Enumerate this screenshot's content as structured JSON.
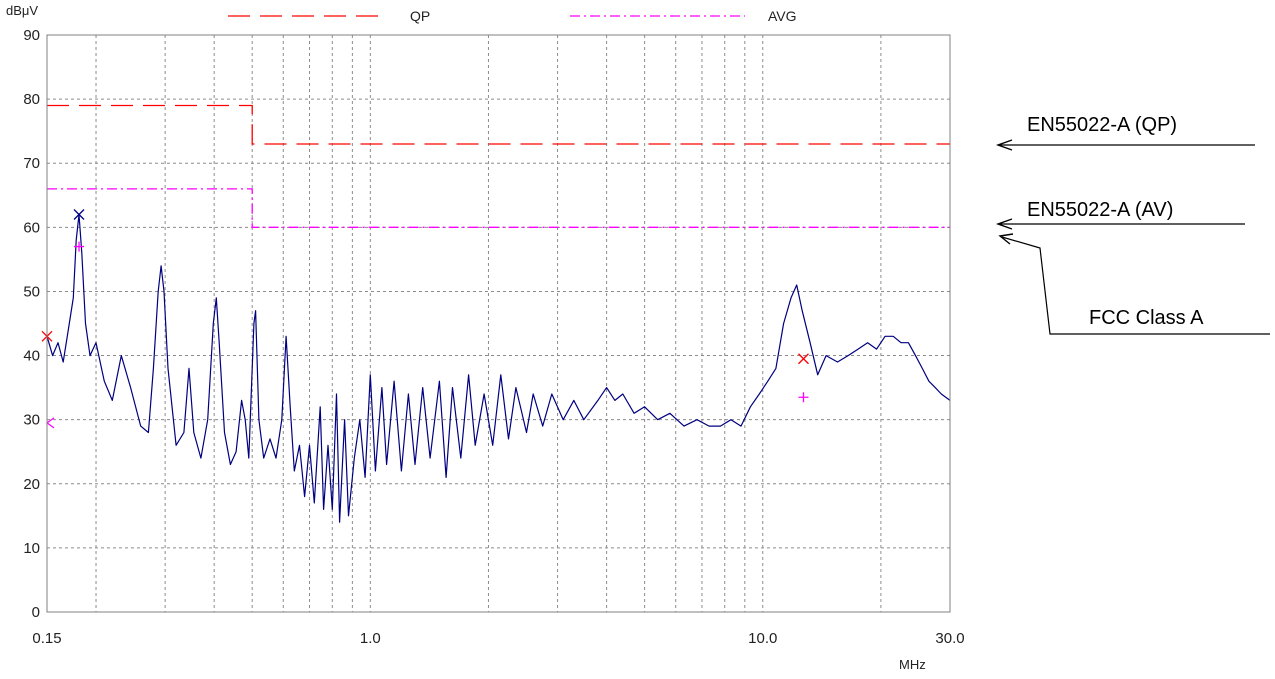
{
  "chart_data": {
    "type": "line",
    "ylabel": "dBμV",
    "xlabel": "MHz",
    "x_scale": "log",
    "xlim": [
      0.15,
      30.0
    ],
    "ylim": [
      0,
      90
    ],
    "y_ticks": [
      0,
      10,
      20,
      30,
      40,
      50,
      60,
      70,
      80,
      90
    ],
    "x_tick_labels": [
      {
        "value": 0.15,
        "label": "0.15"
      },
      {
        "value": 1.0,
        "label": "1.0"
      },
      {
        "value": 10.0,
        "label": "10.0"
      },
      {
        "value": 30.0,
        "label": "30.0"
      }
    ],
    "x_grid": [
      0.2,
      0.3,
      0.4,
      0.5,
      0.6,
      0.7,
      0.8,
      0.9,
      1,
      2,
      3,
      4,
      5,
      6,
      7,
      8,
      9,
      10,
      20
    ],
    "grid": true,
    "legend_position": "top",
    "legend": [
      {
        "name": "QP",
        "color": "#ff0000",
        "style": "dashed"
      },
      {
        "name": "AVG",
        "color": "#ff00ff",
        "style": "dash-dot"
      }
    ],
    "limit_lines": [
      {
        "name": "QP",
        "color": "#ff0000",
        "points": [
          [
            0.15,
            79
          ],
          [
            0.5,
            79
          ],
          [
            0.5,
            73
          ],
          [
            30.0,
            73
          ]
        ]
      },
      {
        "name": "AVG",
        "color": "#ff00ff",
        "points": [
          [
            0.15,
            66
          ],
          [
            0.5,
            66
          ],
          [
            0.5,
            60
          ],
          [
            30.0,
            60
          ]
        ]
      }
    ],
    "trace": {
      "color": "#000080",
      "points": [
        [
          0.15,
          43
        ],
        [
          0.155,
          40
        ],
        [
          0.16,
          42
        ],
        [
          0.165,
          39
        ],
        [
          0.17,
          44
        ],
        [
          0.175,
          49
        ],
        [
          0.178,
          58
        ],
        [
          0.181,
          62
        ],
        [
          0.184,
          56
        ],
        [
          0.188,
          45
        ],
        [
          0.193,
          40
        ],
        [
          0.2,
          42
        ],
        [
          0.21,
          36
        ],
        [
          0.22,
          33
        ],
        [
          0.232,
          40
        ],
        [
          0.245,
          35
        ],
        [
          0.26,
          29
        ],
        [
          0.272,
          28
        ],
        [
          0.28,
          38
        ],
        [
          0.288,
          50
        ],
        [
          0.293,
          54
        ],
        [
          0.298,
          50
        ],
        [
          0.305,
          38
        ],
        [
          0.32,
          26
        ],
        [
          0.335,
          28
        ],
        [
          0.345,
          38
        ],
        [
          0.355,
          28
        ],
        [
          0.37,
          24
        ],
        [
          0.385,
          30
        ],
        [
          0.398,
          45
        ],
        [
          0.405,
          49
        ],
        [
          0.412,
          42
        ],
        [
          0.425,
          28
        ],
        [
          0.44,
          23
        ],
        [
          0.455,
          25
        ],
        [
          0.47,
          33
        ],
        [
          0.48,
          30
        ],
        [
          0.49,
          24
        ],
        [
          0.505,
          45
        ],
        [
          0.51,
          47
        ],
        [
          0.52,
          30
        ],
        [
          0.535,
          24
        ],
        [
          0.555,
          27
        ],
        [
          0.575,
          24
        ],
        [
          0.595,
          30
        ],
        [
          0.61,
          43
        ],
        [
          0.625,
          32
        ],
        [
          0.64,
          22
        ],
        [
          0.66,
          26
        ],
        [
          0.68,
          18
        ],
        [
          0.7,
          26
        ],
        [
          0.72,
          17
        ],
        [
          0.745,
          32
        ],
        [
          0.76,
          16
        ],
        [
          0.78,
          26
        ],
        [
          0.8,
          16
        ],
        [
          0.82,
          34
        ],
        [
          0.835,
          14
        ],
        [
          0.86,
          30
        ],
        [
          0.88,
          15
        ],
        [
          0.91,
          24
        ],
        [
          0.94,
          30
        ],
        [
          0.97,
          21
        ],
        [
          1.0,
          37
        ],
        [
          1.03,
          22
        ],
        [
          1.07,
          35
        ],
        [
          1.1,
          23
        ],
        [
          1.15,
          36
        ],
        [
          1.2,
          22
        ],
        [
          1.25,
          34
        ],
        [
          1.3,
          23
        ],
        [
          1.36,
          35
        ],
        [
          1.42,
          24
        ],
        [
          1.5,
          36
        ],
        [
          1.56,
          21
        ],
        [
          1.62,
          35
        ],
        [
          1.7,
          24
        ],
        [
          1.78,
          37
        ],
        [
          1.85,
          26
        ],
        [
          1.95,
          34
        ],
        [
          2.05,
          26
        ],
        [
          2.15,
          37
        ],
        [
          2.25,
          27
        ],
        [
          2.35,
          35
        ],
        [
          2.5,
          28
        ],
        [
          2.6,
          34
        ],
        [
          2.75,
          29
        ],
        [
          2.9,
          34
        ],
        [
          3.1,
          30
        ],
        [
          3.3,
          33
        ],
        [
          3.5,
          30
        ],
        [
          3.8,
          33
        ],
        [
          4.0,
          35
        ],
        [
          4.2,
          33
        ],
        [
          4.4,
          34
        ],
        [
          4.7,
          31
        ],
        [
          5.0,
          32
        ],
        [
          5.4,
          30
        ],
        [
          5.8,
          31
        ],
        [
          6.3,
          29
        ],
        [
          6.8,
          30
        ],
        [
          7.3,
          29
        ],
        [
          7.8,
          29
        ],
        [
          8.3,
          30
        ],
        [
          8.8,
          29
        ],
        [
          9.3,
          32
        ],
        [
          9.8,
          34
        ],
        [
          10.3,
          36
        ],
        [
          10.8,
          38
        ],
        [
          11.3,
          45
        ],
        [
          11.8,
          49
        ],
        [
          12.2,
          51
        ],
        [
          12.6,
          47
        ],
        [
          13.2,
          42
        ],
        [
          13.8,
          37
        ],
        [
          14.5,
          40
        ],
        [
          15.5,
          39
        ],
        [
          16.5,
          40
        ],
        [
          17.5,
          41
        ],
        [
          18.5,
          42
        ],
        [
          19.5,
          41
        ],
        [
          20.5,
          43
        ],
        [
          21.5,
          43
        ],
        [
          22.5,
          42
        ],
        [
          23.5,
          42
        ],
        [
          24.5,
          40
        ],
        [
          25.5,
          38
        ],
        [
          26.5,
          36
        ],
        [
          27.5,
          35
        ],
        [
          28.5,
          34
        ],
        [
          30.0,
          33
        ]
      ]
    },
    "markers": [
      {
        "type": "x",
        "color": "#ff0000",
        "x": 0.15,
        "y": 43
      },
      {
        "type": "x",
        "color": "#000080",
        "x": 0.181,
        "y": 62
      },
      {
        "type": "plus",
        "color": "#ff00ff",
        "x": 0.181,
        "y": 57
      },
      {
        "type": "tri",
        "color": "#ff00ff",
        "x": 0.15,
        "y": 29.5
      },
      {
        "type": "x",
        "color": "#ff0000",
        "x": 12.7,
        "y": 39.5
      },
      {
        "type": "plus",
        "color": "#ff00ff",
        "x": 12.7,
        "y": 33.5
      }
    ],
    "annotations": [
      {
        "text": "EN55022-A (QP)",
        "points_to": "QP limit line"
      },
      {
        "text": "EN55022-A (AV)",
        "points_to": "AVG limit line"
      },
      {
        "text": "FCC Class A",
        "points_to": "AVG limit line"
      }
    ]
  }
}
